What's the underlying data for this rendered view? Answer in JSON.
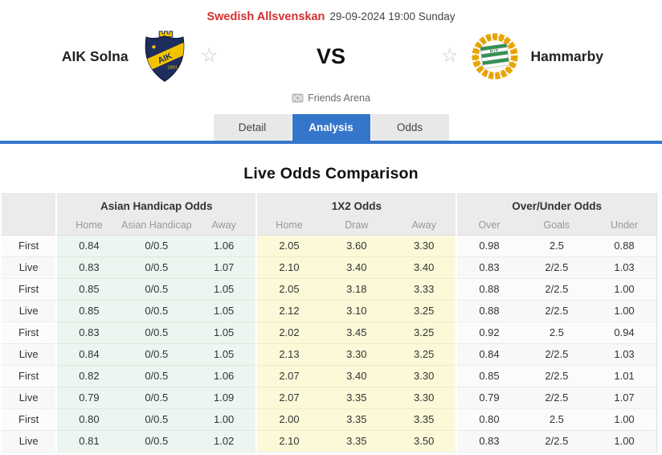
{
  "header": {
    "league": "Swedish Allsvenskan",
    "datetime": "29-09-2024 19:00 Sunday",
    "home_team": "AIK Solna",
    "away_team": "Hammarby",
    "vs_label": "VS",
    "venue": "Friends Arena",
    "favorite_icon": "☆"
  },
  "tabs": [
    {
      "label": "Detail",
      "active": false
    },
    {
      "label": "Analysis",
      "active": true
    },
    {
      "label": "Odds",
      "active": false
    }
  ],
  "section_title": "Live Odds Comparison",
  "odds_table": {
    "groups": [
      {
        "title": "Asian Handicap Odds",
        "columns": [
          "Home",
          "Asian Handicap",
          "Away"
        ]
      },
      {
        "title": "1X2 Odds",
        "columns": [
          "Home",
          "Draw",
          "Away"
        ]
      },
      {
        "title": "Over/Under Odds",
        "columns": [
          "Over",
          "Goals",
          "Under"
        ]
      }
    ],
    "rows": [
      {
        "label": "First",
        "ah": [
          "0.84",
          "0/0.5",
          "1.06"
        ],
        "x12": [
          "2.05",
          "3.60",
          "3.30"
        ],
        "ou": [
          "0.98",
          "2.5",
          "0.88"
        ]
      },
      {
        "label": "Live",
        "ah": [
          "0.83",
          "0/0.5",
          "1.07"
        ],
        "x12": [
          "2.10",
          "3.40",
          "3.40"
        ],
        "ou": [
          "0.83",
          "2/2.5",
          "1.03"
        ]
      },
      {
        "label": "First",
        "ah": [
          "0.85",
          "0/0.5",
          "1.05"
        ],
        "x12": [
          "2.05",
          "3.18",
          "3.33"
        ],
        "ou": [
          "0.88",
          "2/2.5",
          "1.00"
        ]
      },
      {
        "label": "Live",
        "ah": [
          "0.85",
          "0/0.5",
          "1.05"
        ],
        "x12": [
          "2.12",
          "3.10",
          "3.25"
        ],
        "ou": [
          "0.88",
          "2/2.5",
          "1.00"
        ]
      },
      {
        "label": "First",
        "ah": [
          "0.83",
          "0/0.5",
          "1.05"
        ],
        "x12": [
          "2.02",
          "3.45",
          "3.25"
        ],
        "ou": [
          "0.92",
          "2.5",
          "0.94"
        ]
      },
      {
        "label": "Live",
        "ah": [
          "0.84",
          "0/0.5",
          "1.05"
        ],
        "x12": [
          "2.13",
          "3.30",
          "3.25"
        ],
        "ou": [
          "0.84",
          "2/2.5",
          "1.03"
        ]
      },
      {
        "label": "First",
        "ah": [
          "0.82",
          "0/0.5",
          "1.06"
        ],
        "x12": [
          "2.07",
          "3.40",
          "3.30"
        ],
        "ou": [
          "0.85",
          "2/2.5",
          "1.01"
        ]
      },
      {
        "label": "Live",
        "ah": [
          "0.79",
          "0/0.5",
          "1.09"
        ],
        "x12": [
          "2.07",
          "3.35",
          "3.30"
        ],
        "ou": [
          "0.79",
          "2/2.5",
          "1.07"
        ]
      },
      {
        "label": "First",
        "ah": [
          "0.80",
          "0/0.5",
          "1.00"
        ],
        "x12": [
          "2.00",
          "3.35",
          "3.35"
        ],
        "ou": [
          "0.80",
          "2.5",
          "1.00"
        ]
      },
      {
        "label": "Live",
        "ah": [
          "0.81",
          "0/0.5",
          "1.02"
        ],
        "x12": [
          "2.10",
          "3.35",
          "3.50"
        ],
        "ou": [
          "0.83",
          "2/2.5",
          "1.00"
        ]
      }
    ]
  },
  "colors": {
    "accent_blue": "#3476ca",
    "league_red": "#d43030",
    "asian_handicap_bg": "#eaf6ef",
    "x12_bg": "#fcf9d9",
    "table_header_bg": "#ebebeb"
  }
}
